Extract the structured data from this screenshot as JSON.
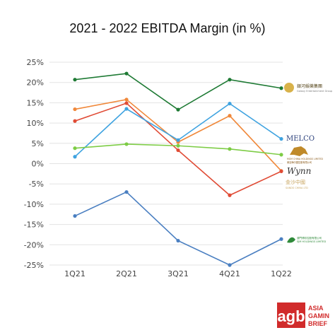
{
  "chart_data": {
    "type": "line",
    "title": "2021 - 2022 EBITDA Margin (in %)",
    "categories": [
      "1Q21",
      "2Q21",
      "3Q21",
      "4Q21",
      "1Q22"
    ],
    "ylim": [
      -25,
      25
    ],
    "yticks": [
      "25%",
      "20%",
      "15%",
      "10%",
      "5%",
      "0%",
      "-5%",
      "-10%",
      "-15%",
      "-20%",
      "-25%"
    ],
    "grid": true,
    "series": [
      {
        "color": "#1e7a34",
        "values": [
          20.7,
          22.2,
          13.3,
          20.7,
          18.6
        ],
        "logo": "galaxy",
        "logo_text": "銀河娛樂集團",
        "logo_sub": "Galaxy Entertainment Group"
      },
      {
        "color": "#f0883a",
        "values": [
          13.4,
          15.8,
          5.3,
          11.8,
          -1.8
        ]
      },
      {
        "color": "#e04b35",
        "values": [
          10.5,
          14.9,
          3.3,
          -7.8,
          -1.9
        ]
      },
      {
        "color": "#3fa3e0",
        "values": [
          1.7,
          13.5,
          5.8,
          14.8,
          6.1
        ],
        "logo": "melco",
        "logo_text": "MELCO"
      },
      {
        "color": "#7dcc45",
        "values": [
          3.8,
          4.8,
          4.4,
          3.6,
          2.2
        ]
      },
      {
        "color": "#4a7fc1",
        "values": [
          -12.9,
          -7.0,
          -19.0,
          -25.0,
          -18.6
        ],
        "logo": "sjm",
        "logo_text": "SJM HOLDINGS LIMITED"
      }
    ],
    "logos": {
      "mgm": {
        "text": "MGM CHINA HOLDINGS LIMITED",
        "sub": "美高梅中國控股有限公司"
      },
      "wynn": {
        "text": "Wynn"
      },
      "sands": {
        "text": "SANDS CHINA LTD",
        "sub": "金沙中國"
      }
    }
  },
  "brand": {
    "logo": "agb",
    "line1": "ASIA",
    "line2": "GAMING",
    "line3": "BRIEF"
  }
}
